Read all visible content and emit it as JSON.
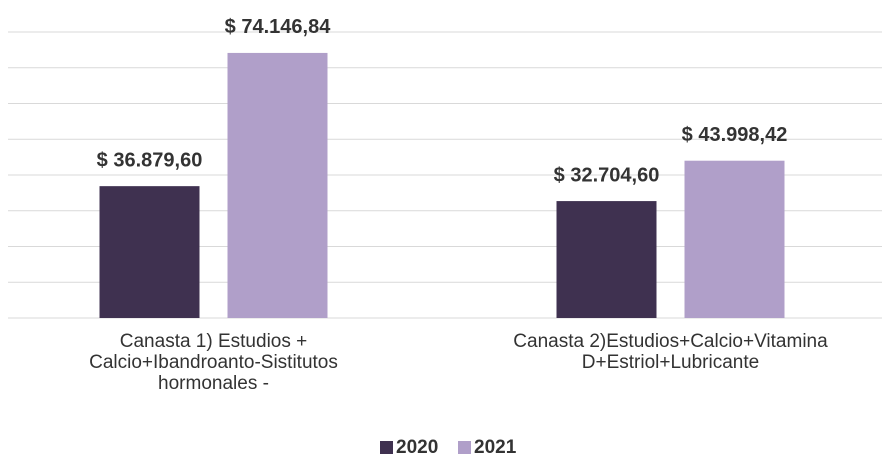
{
  "chart_data": {
    "type": "bar",
    "categories": [
      "Canasta 1) Estudios + Calcio+Ibandroanto-Sistitutos hormonales -",
      "Canasta 2)Estudios+Calcio+Vitamina D+Estriol+Lubricante"
    ],
    "series": [
      {
        "name": "2020",
        "color": "#3f3150",
        "values": [
          36879.6,
          32704.6
        ],
        "value_labels": [
          "$ 36.879,60",
          "$ 32.704,60"
        ]
      },
      {
        "name": "2021",
        "color": "#b09fc9",
        "values": [
          74146.84,
          43998.42
        ],
        "value_labels": [
          "$ 74.146,84",
          "$ 43.998,42"
        ]
      }
    ],
    "ylim": [
      0,
      80000
    ],
    "yticks": [
      0,
      10000,
      20000,
      30000,
      40000,
      50000,
      60000,
      70000,
      80000
    ],
    "grid": true,
    "legend": "bottom"
  }
}
